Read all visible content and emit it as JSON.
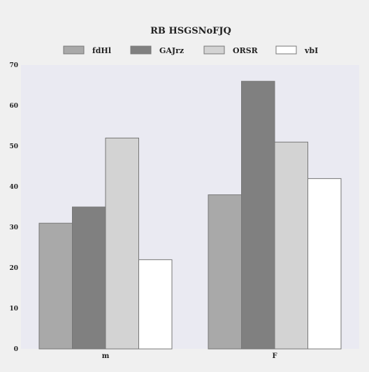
{
  "chart_data": {
    "type": "bar",
    "title": "RB HSGSNoFJQ",
    "categories": [
      "m",
      "F"
    ],
    "series": [
      {
        "name": "fdHl",
        "values": [
          31,
          38
        ],
        "color": "#a9a9a9"
      },
      {
        "name": "GAJrz",
        "values": [
          35,
          66
        ],
        "color": "#808080"
      },
      {
        "name": "ORSR",
        "values": [
          52,
          51
        ],
        "color": "#d3d3d3"
      },
      {
        "name": "vbI",
        "values": [
          22,
          42
        ],
        "color": "#ffffff"
      }
    ],
    "ylim": [
      0,
      70
    ],
    "yticks": [
      0,
      10,
      20,
      30,
      40,
      50,
      60,
      70
    ],
    "xlabel": "",
    "ylabel": "",
    "grid": false,
    "legend_position": "top-center"
  },
  "colors": {
    "page_background": "#f0f0f0",
    "plot_background": "#eaeaf2",
    "bar_edge": "#777777",
    "text": "#222222"
  }
}
